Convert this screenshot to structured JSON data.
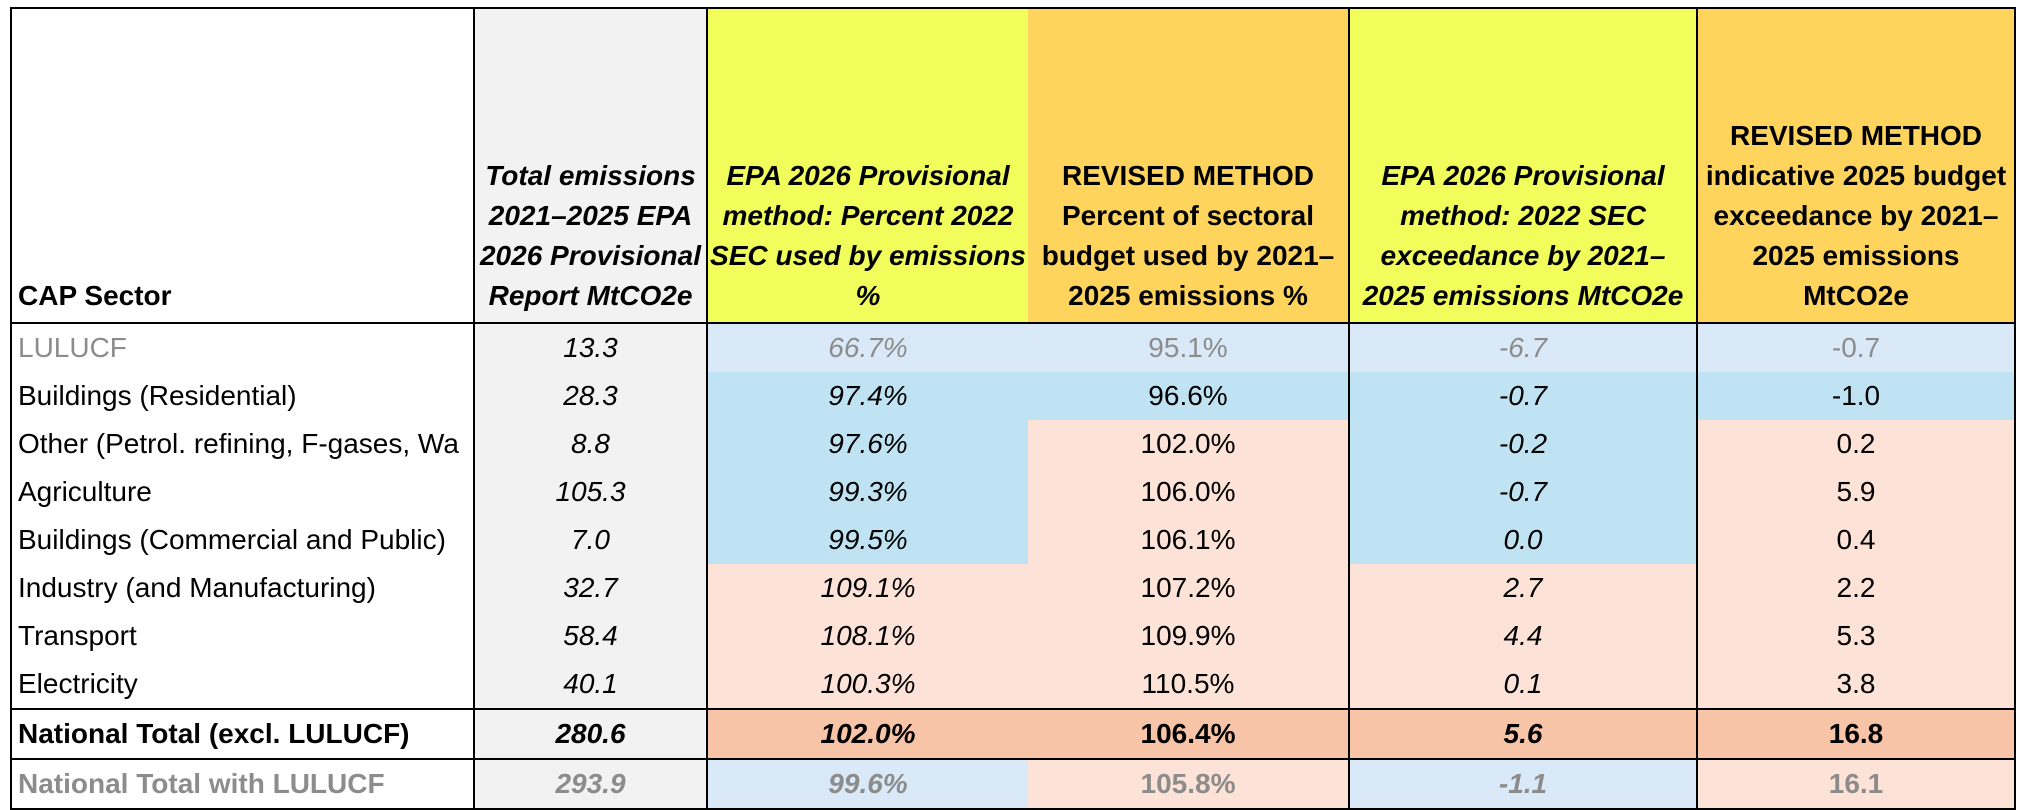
{
  "headers": {
    "sector": "CAP Sector",
    "total_emissions": "Total emissions 2021–2025 EPA 2026 Provisional Report MtCO2e",
    "epa_percent": "EPA 2026 Provisional method: Percent 2022 SEC used by emissions %",
    "revised_percent": "REVISED METHOD Percent of sectoral budget used by 2021–2025 emissions %",
    "epa_exceedance": "EPA 2026 Provisional method: 2022 SEC exceedance by 2021–2025 emissions MtCO2e",
    "revised_exceedance": "REVISED METHOD indicative 2025 budget exceedance by 2021–2025 emissions MtCO2e"
  },
  "rows": [
    {
      "sector": "LULUCF",
      "total": "13.3",
      "epa_pct": "66.7%",
      "rev_pct": "95.1%",
      "epa_exc": "-6.7",
      "rev_exc": "-0.7"
    },
    {
      "sector": "Buildings (Residential)",
      "total": "28.3",
      "epa_pct": "97.4%",
      "rev_pct": "96.6%",
      "epa_exc": "-0.7",
      "rev_exc": "-1.0"
    },
    {
      "sector": "Other (Petrol. refining, F-gases, Wa",
      "total": "8.8",
      "epa_pct": "97.6%",
      "rev_pct": "102.0%",
      "epa_exc": "-0.2",
      "rev_exc": "0.2"
    },
    {
      "sector": "Agriculture",
      "total": "105.3",
      "epa_pct": "99.3%",
      "rev_pct": "106.0%",
      "epa_exc": "-0.7",
      "rev_exc": "5.9"
    },
    {
      "sector": "Buildings (Commercial and Public)",
      "total": "7.0",
      "epa_pct": "99.5%",
      "rev_pct": "106.1%",
      "epa_exc": "0.0",
      "rev_exc": "0.4"
    },
    {
      "sector": "Industry (and Manufacturing)",
      "total": "32.7",
      "epa_pct": "109.1%",
      "rev_pct": "107.2%",
      "epa_exc": "2.7",
      "rev_exc": "2.2"
    },
    {
      "sector": "Transport",
      "total": "58.4",
      "epa_pct": "108.1%",
      "rev_pct": "109.9%",
      "epa_exc": "4.4",
      "rev_exc": "5.3"
    },
    {
      "sector": "Electricity",
      "total": "40.1",
      "epa_pct": "100.3%",
      "rev_pct": "110.5%",
      "epa_exc": "0.1",
      "rev_exc": "3.8"
    },
    {
      "sector": "National Total (excl. LULUCF)",
      "total": "280.6",
      "epa_pct": "102.0%",
      "rev_pct": "106.4%",
      "epa_exc": "5.6",
      "rev_exc": "16.8"
    },
    {
      "sector": "National Total with LULUCF",
      "total": "293.9",
      "epa_pct": "99.6%",
      "rev_pct": "105.8%",
      "epa_exc": "-1.1",
      "rev_exc": "16.1"
    }
  ],
  "colors": {
    "total_col": "#f2f2f2",
    "epa_header": "#f0fd5a",
    "revised_header": "#ffd45c",
    "light_blue": "#dae9f7",
    "blue": "#bfe3f3",
    "peach": "#fce2d7",
    "total_peach": "#f7c4a8",
    "grey_text": "#8c8c8c"
  }
}
